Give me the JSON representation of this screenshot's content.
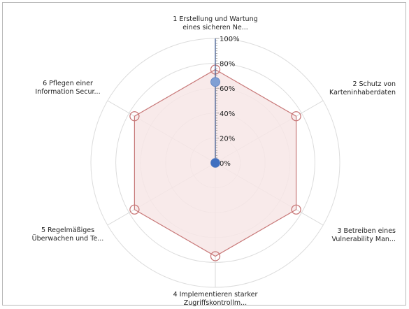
{
  "chart_data": {
    "type": "radar",
    "axes": [
      {
        "id": "axis-1",
        "line1": "1 Erstellung und Wartung",
        "line2": "eines sicheren Ne..."
      },
      {
        "id": "axis-2",
        "line1": "2 Schutz von",
        "line2": "Karteninhaberdaten"
      },
      {
        "id": "axis-3",
        "line1": "3 Betreiben eines",
        "line2": "Vulnerability Man..."
      },
      {
        "id": "axis-4",
        "line1": "4 Implementieren starker",
        "line2": "Zugriffskontrollm..."
      },
      {
        "id": "axis-5",
        "line1": "5 Regelmäßiges",
        "line2": "Überwachen und Te..."
      },
      {
        "id": "axis-6",
        "line1": "6 Pflegen einer",
        "line2": "Information Secur..."
      }
    ],
    "tick_labels": [
      "0%",
      "20%",
      "40%",
      "60%",
      "80%",
      "100%"
    ],
    "ylim": [
      0,
      100
    ],
    "series": [
      {
        "type": "area",
        "values": [
          75,
          75,
          75,
          75,
          75,
          75
        ],
        "color": "#c87878",
        "fill": "#f7e6e6"
      }
    ],
    "markers": [
      {
        "axis": 0,
        "value": 65,
        "color": "#7f9fd4"
      },
      {
        "axis": 0,
        "value": 0,
        "color": "#3f6fc0"
      }
    ],
    "grid": true
  }
}
